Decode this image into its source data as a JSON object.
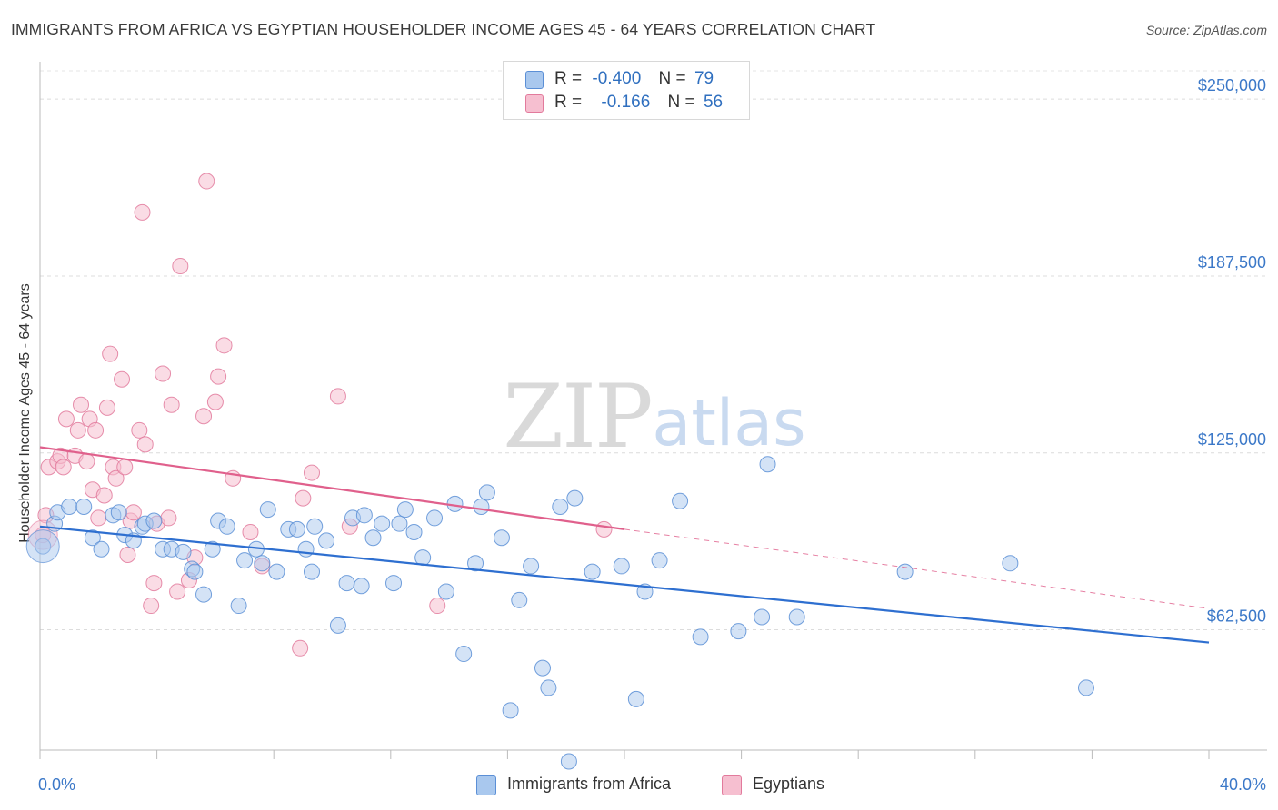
{
  "title": "IMMIGRANTS FROM AFRICA VS EGYPTIAN HOUSEHOLDER INCOME AGES 45 - 64 YEARS CORRELATION CHART",
  "source": "Source: ZipAtlas.com",
  "watermark": {
    "zip": "ZIP",
    "atlas": "atlas"
  },
  "stats": {
    "r_label": "R =",
    "n_label": "N =",
    "rows": [
      {
        "r": "-0.400",
        "n": "79",
        "color": "#a9c8ee",
        "stroke": "#5b8fd6"
      },
      {
        "r": "-0.166",
        "n": "56",
        "color": "#f6bfd0",
        "stroke": "#e27a9c"
      }
    ]
  },
  "legend": [
    {
      "label": "Immigrants from Africa",
      "color": "#a9c8ee",
      "stroke": "#5b8fd6"
    },
    {
      "label": "Egyptians",
      "color": "#f6bfd0",
      "stroke": "#e27a9c"
    }
  ],
  "chart_data": {
    "type": "scatter",
    "title": "IMMIGRANTS FROM AFRICA VS EGYPTIAN HOUSEHOLDER INCOME AGES 45 - 64 YEARS CORRELATION CHART",
    "xlabel": "",
    "ylabel": "Householder Income Ages 45 - 64 years",
    "xlim": [
      0,
      40
    ],
    "ylim": [
      20000,
      260000
    ],
    "x_tick_labels": [
      "0.0%",
      "40.0%"
    ],
    "y_ticks": [
      62500,
      125000,
      187500,
      250000
    ],
    "y_tick_labels": [
      "$62,500",
      "$125,000",
      "$187,500",
      "$250,000"
    ],
    "grid": true,
    "colors": {
      "africa_fill": "#a9c8ee",
      "africa_stroke": "#5b8fd6",
      "africa_line": "#2e6fd0",
      "egypt_fill": "#f6bfd0",
      "egypt_stroke": "#e27a9c",
      "egypt_line": "#e0608c",
      "tick_label": "#3b78c8"
    },
    "series": [
      {
        "name": "Immigrants from Africa",
        "trend": {
          "x": [
            0,
            40
          ],
          "y": [
            99000,
            58000
          ]
        },
        "points": [
          [
            0.1,
            92000
          ],
          [
            0.5,
            100000
          ],
          [
            0.6,
            104000
          ],
          [
            1.0,
            106000
          ],
          [
            1.5,
            106000
          ],
          [
            1.8,
            95000
          ],
          [
            2.1,
            91000
          ],
          [
            2.5,
            103000
          ],
          [
            2.7,
            104000
          ],
          [
            2.9,
            96000
          ],
          [
            3.2,
            94000
          ],
          [
            3.5,
            99000
          ],
          [
            3.6,
            100000
          ],
          [
            3.9,
            101000
          ],
          [
            4.2,
            91000
          ],
          [
            4.5,
            91000
          ],
          [
            4.9,
            90000
          ],
          [
            5.2,
            84000
          ],
          [
            5.3,
            83000
          ],
          [
            5.6,
            75000
          ],
          [
            5.9,
            91000
          ],
          [
            6.1,
            101000
          ],
          [
            6.4,
            99000
          ],
          [
            6.8,
            71000
          ],
          [
            7.0,
            87000
          ],
          [
            7.4,
            91000
          ],
          [
            7.6,
            86000
          ],
          [
            7.8,
            105000
          ],
          [
            8.1,
            83000
          ],
          [
            8.5,
            98000
          ],
          [
            8.8,
            98000
          ],
          [
            9.1,
            91000
          ],
          [
            9.3,
            83000
          ],
          [
            9.4,
            99000
          ],
          [
            9.8,
            94000
          ],
          [
            10.2,
            64000
          ],
          [
            10.5,
            79000
          ],
          [
            10.7,
            102000
          ],
          [
            11.0,
            78000
          ],
          [
            11.1,
            103000
          ],
          [
            11.4,
            95000
          ],
          [
            11.7,
            100000
          ],
          [
            12.1,
            79000
          ],
          [
            12.3,
            100000
          ],
          [
            12.5,
            105000
          ],
          [
            12.8,
            97000
          ],
          [
            13.1,
            88000
          ],
          [
            13.5,
            102000
          ],
          [
            13.9,
            76000
          ],
          [
            14.2,
            107000
          ],
          [
            14.5,
            54000
          ],
          [
            14.9,
            86000
          ],
          [
            15.1,
            106000
          ],
          [
            15.3,
            111000
          ],
          [
            15.8,
            95000
          ],
          [
            16.1,
            34000
          ],
          [
            16.4,
            73000
          ],
          [
            16.8,
            85000
          ],
          [
            17.2,
            49000
          ],
          [
            17.4,
            42000
          ],
          [
            17.8,
            106000
          ],
          [
            18.1,
            16000
          ],
          [
            18.3,
            109000
          ],
          [
            18.9,
            83000
          ],
          [
            19.9,
            85000
          ],
          [
            20.4,
            38000
          ],
          [
            20.7,
            76000
          ],
          [
            21.2,
            87000
          ],
          [
            21.9,
            108000
          ],
          [
            22.6,
            60000
          ],
          [
            23.9,
            62000
          ],
          [
            24.7,
            67000
          ],
          [
            24.9,
            121000
          ],
          [
            25.9,
            67000
          ],
          [
            29.6,
            83000
          ],
          [
            33.2,
            86000
          ],
          [
            35.8,
            42000
          ]
        ]
      },
      {
        "name": "Egyptians",
        "trend": {
          "x": [
            0,
            20
          ],
          "y": [
            127000,
            98000
          ]
        },
        "trend_extension": {
          "x": [
            20,
            40
          ],
          "y": [
            98000,
            70000
          ]
        },
        "points": [
          [
            0.1,
            96000
          ],
          [
            0.2,
            103000
          ],
          [
            0.3,
            120000
          ],
          [
            0.6,
            122000
          ],
          [
            0.7,
            124000
          ],
          [
            0.8,
            120000
          ],
          [
            0.9,
            137000
          ],
          [
            1.2,
            124000
          ],
          [
            1.3,
            133000
          ],
          [
            1.4,
            142000
          ],
          [
            1.6,
            122000
          ],
          [
            1.7,
            137000
          ],
          [
            1.8,
            112000
          ],
          [
            1.9,
            133000
          ],
          [
            2.0,
            102000
          ],
          [
            2.2,
            110000
          ],
          [
            2.3,
            141000
          ],
          [
            2.4,
            160000
          ],
          [
            2.5,
            120000
          ],
          [
            2.6,
            116000
          ],
          [
            2.8,
            151000
          ],
          [
            2.9,
            120000
          ],
          [
            3.0,
            89000
          ],
          [
            3.1,
            101000
          ],
          [
            3.2,
            104000
          ],
          [
            3.4,
            133000
          ],
          [
            3.5,
            210000
          ],
          [
            3.6,
            128000
          ],
          [
            3.8,
            71000
          ],
          [
            3.9,
            79000
          ],
          [
            4.0,
            100000
          ],
          [
            4.2,
            153000
          ],
          [
            4.4,
            102000
          ],
          [
            4.5,
            142000
          ],
          [
            4.7,
            76000
          ],
          [
            4.8,
            191000
          ],
          [
            5.1,
            80000
          ],
          [
            5.3,
            88000
          ],
          [
            5.6,
            138000
          ],
          [
            5.7,
            221000
          ],
          [
            6.0,
            143000
          ],
          [
            6.1,
            152000
          ],
          [
            6.3,
            163000
          ],
          [
            6.6,
            116000
          ],
          [
            7.2,
            97000
          ],
          [
            7.6,
            85000
          ],
          [
            8.9,
            56000
          ],
          [
            9.0,
            109000
          ],
          [
            9.3,
            118000
          ],
          [
            10.2,
            145000
          ],
          [
            10.6,
            99000
          ],
          [
            13.6,
            71000
          ],
          [
            19.3,
            98000
          ]
        ]
      }
    ]
  }
}
